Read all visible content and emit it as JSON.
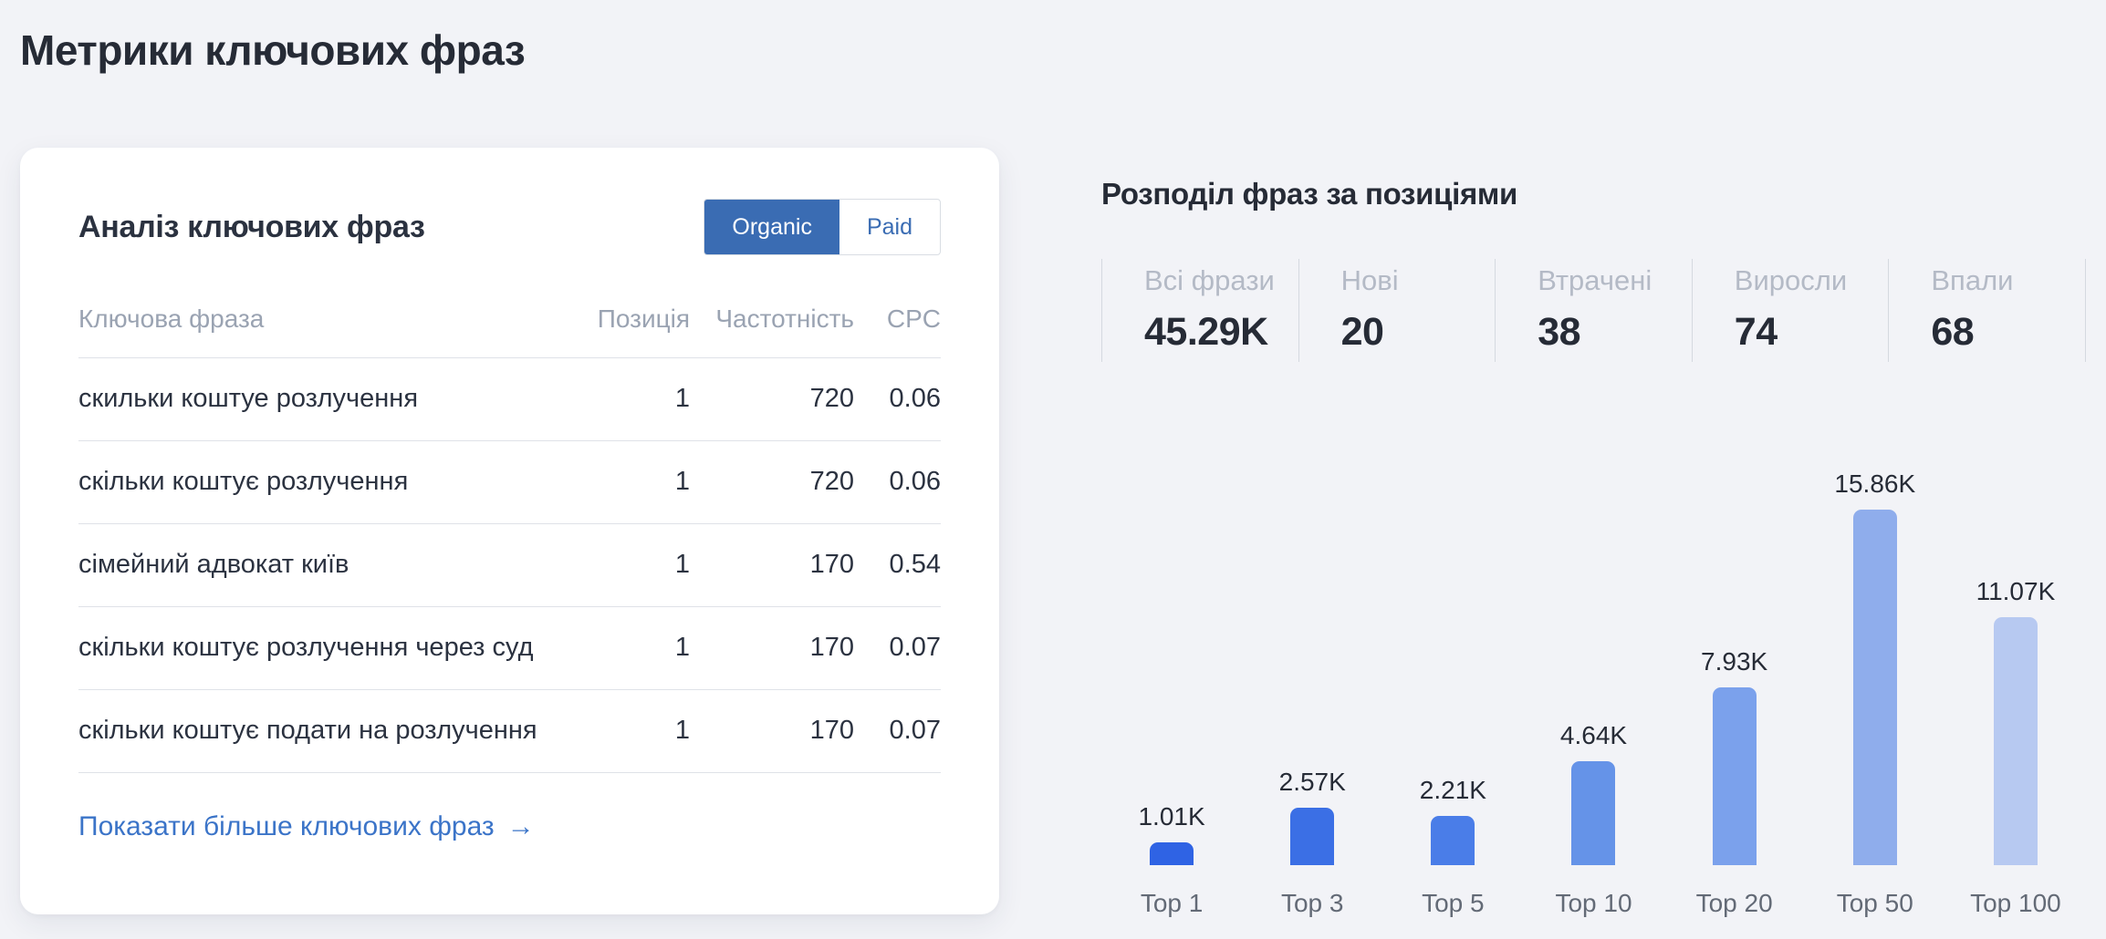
{
  "page": {
    "title": "Метрики ключових фраз"
  },
  "card": {
    "title": "Аналіз ключових фраз",
    "toggle": {
      "organic": "Organic",
      "paid": "Paid",
      "active": "Organic"
    },
    "table": {
      "headers": {
        "phrase": "Ключова фраза",
        "position": "Позиція",
        "frequency": "Частотність",
        "cpc": "CPC"
      },
      "rows": [
        {
          "phrase": "скильки коштуе розлучення",
          "position": "1",
          "frequency": "720",
          "cpc": "0.06"
        },
        {
          "phrase": "скільки коштує розлучення",
          "position": "1",
          "frequency": "720",
          "cpc": "0.06"
        },
        {
          "phrase": "сімейний адвокат київ",
          "position": "1",
          "frequency": "170",
          "cpc": "0.54"
        },
        {
          "phrase": "скільки коштує розлучення через суд",
          "position": "1",
          "frequency": "170",
          "cpc": "0.07"
        },
        {
          "phrase": "скільки коштує подати на розлучення",
          "position": "1",
          "frequency": "170",
          "cpc": "0.07"
        }
      ]
    },
    "show_more": {
      "label": "Показати більше ключових фраз",
      "arrow": "→"
    }
  },
  "distribution": {
    "title": "Розподіл фраз за позиціями",
    "stats": [
      {
        "label": "Всі фрази",
        "value": "45.29K"
      },
      {
        "label": "Нові",
        "value": "20"
      },
      {
        "label": "Втрачені",
        "value": "38"
      },
      {
        "label": "Виросли",
        "value": "74"
      },
      {
        "label": "Впали",
        "value": "68"
      }
    ]
  },
  "chart_data": {
    "type": "bar",
    "title": "Розподіл фраз за позиціями",
    "categories": [
      "Top 1",
      "Top 3",
      "Top 5",
      "Top 10",
      "Top 20",
      "Top 50",
      "Top 100"
    ],
    "values": [
      1010,
      2570,
      2210,
      4640,
      7930,
      15860,
      11070
    ],
    "value_labels": [
      "1.01K",
      "2.57K",
      "2.21K",
      "4.64K",
      "7.93K",
      "15.86K",
      "11.07K"
    ],
    "bar_colors": [
      "#2f63e4",
      "#3b6fe5",
      "#4a7de8",
      "#6593e8",
      "#7ba1ec",
      "#8fadec",
      "#b7c9f1"
    ],
    "xlabel": "",
    "ylabel": "",
    "ylim": [
      0,
      16000
    ],
    "grid": false,
    "legend": "none"
  },
  "colors": {
    "page_background": "#f2f3f7",
    "card_background": "#ffffff",
    "accent_toggle_blue": "#3a6cb3",
    "link_blue": "#3b74c8",
    "dark_text": "#262b36",
    "muted_text": "#9aa3b2",
    "stat_label_gray": "#b4bac6",
    "divider": "#dfe2e8"
  }
}
